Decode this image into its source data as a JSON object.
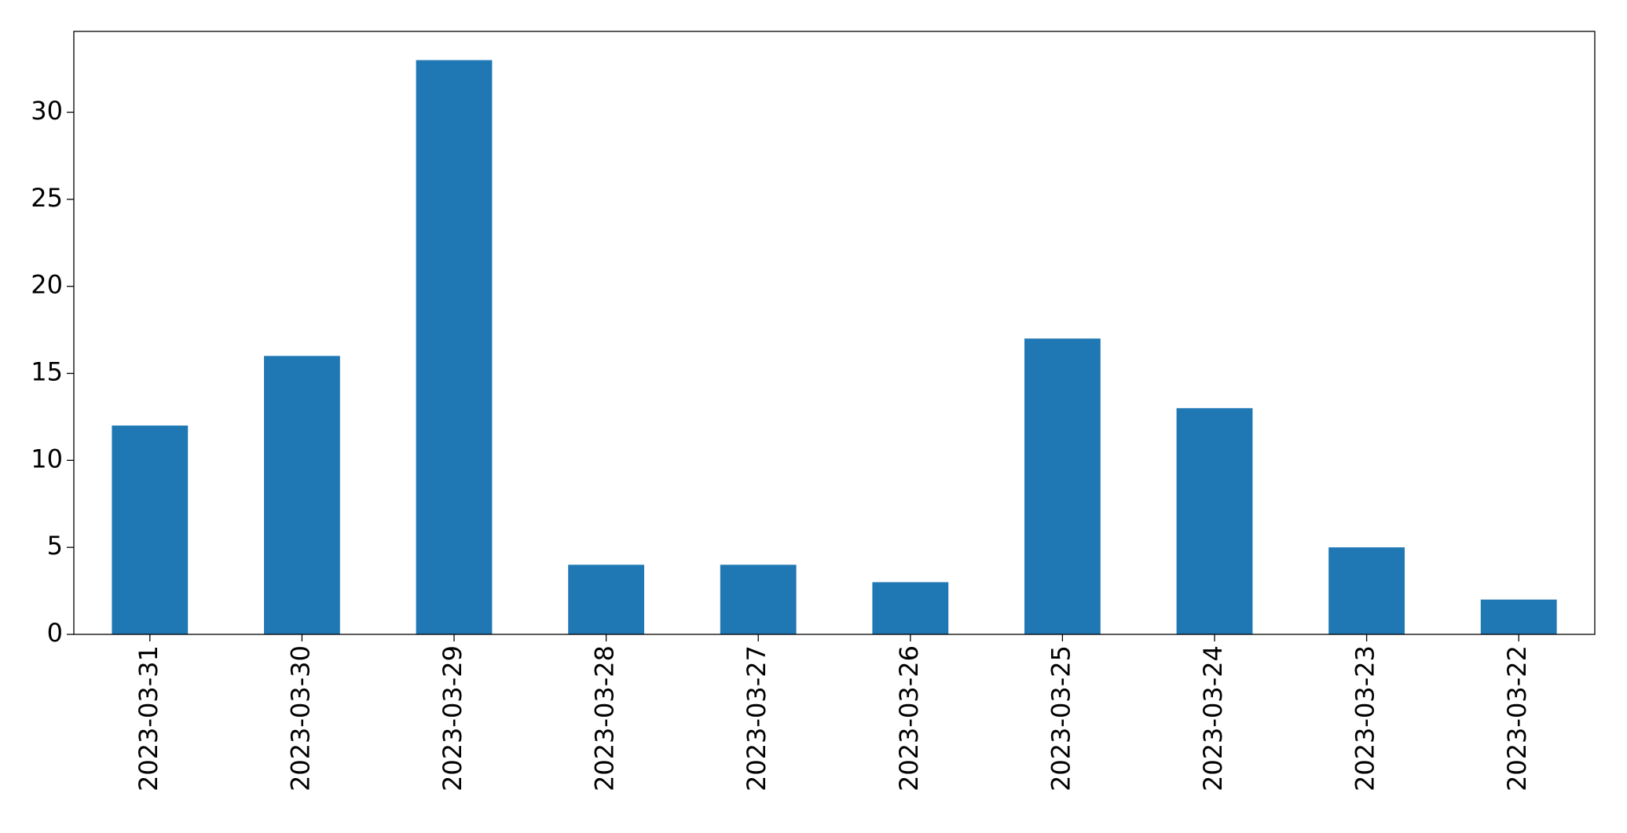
{
  "chart_data": {
    "type": "bar",
    "categories": [
      "2023-03-31",
      "2023-03-30",
      "2023-03-29",
      "2023-03-28",
      "2023-03-27",
      "2023-03-26",
      "2023-03-25",
      "2023-03-24",
      "2023-03-23",
      "2023-03-22"
    ],
    "values": [
      12,
      16,
      33,
      4,
      4,
      3,
      17,
      13,
      5,
      2
    ],
    "color": "#1f77b4",
    "ylim": [
      0,
      34.65
    ],
    "yticks": [
      0,
      5,
      10,
      15,
      20,
      25,
      30
    ],
    "grid": false
  }
}
